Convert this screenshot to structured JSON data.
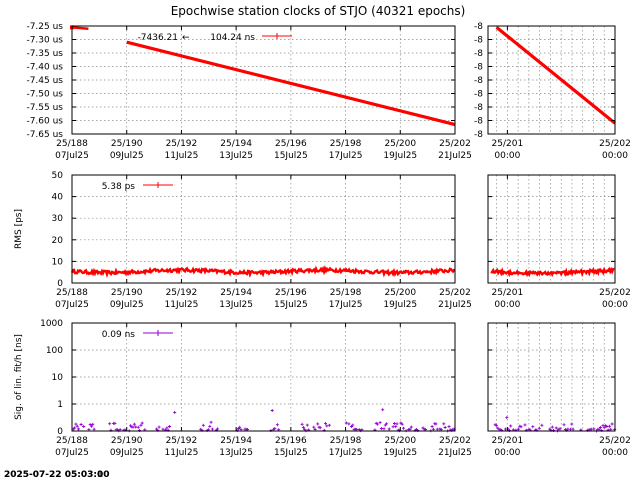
{
  "title": "Epochwise station clocks of STJO (40321 epochs)",
  "timestamp": "2025-07-22 05:03:00",
  "timestamp_overlay": "2025-07-22 05:03:10",
  "colors": {
    "clock": "#ff0000",
    "rms": "#ff0000",
    "sig": "#9400d3",
    "grid": "#888888"
  },
  "date_ticks_main": [
    {
      "top": "25/188",
      "bottom": "07Jul25"
    },
    {
      "top": "25/190",
      "bottom": "09Jul25"
    },
    {
      "top": "25/192",
      "bottom": "11Jul25"
    },
    {
      "top": "25/194",
      "bottom": "13Jul25"
    },
    {
      "top": "25/196",
      "bottom": "15Jul25"
    },
    {
      "top": "25/198",
      "bottom": "17Jul25"
    },
    {
      "top": "25/200",
      "bottom": "19Jul25"
    },
    {
      "top": "25/202",
      "bottom": "21Jul25"
    }
  ],
  "date_ticks_side": [
    {
      "top": "25/201",
      "bottom": "00:00"
    },
    {
      "top": "25/202",
      "bottom": "00:00"
    }
  ],
  "chart_data": [
    {
      "type": "line",
      "ylabel": "",
      "ylim": [
        -7.65,
        -7.25
      ],
      "y_ticks": [
        "-7.25 us",
        "-7.30 us",
        "-7.35 us",
        "-7.40 us",
        "-7.45 us",
        "-7.50 us",
        "-7.55 us",
        "-7.60 us",
        "-7.65 us"
      ],
      "grid": true,
      "legend": {
        "position": "top",
        "entries": [
          "-7436.21",
          "104.24 ns"
        ],
        "arrow": "←"
      },
      "series": [
        {
          "x": [
            188.0,
            190.0,
            202.0
          ],
          "y": [
            -7.255,
            -7.31,
            -7.615
          ]
        }
      ],
      "outlier_segment": {
        "x": [
          188.0,
          188.6
        ],
        "y": [
          -7.255,
          -7.26
        ]
      }
    },
    {
      "type": "line",
      "ylabel": "",
      "y_ticks": [
        "-8",
        "-8",
        "-8",
        "-8",
        "-8",
        "-8",
        "-8",
        "-8",
        "-8"
      ],
      "grid": true,
      "series": [
        {
          "x": [
            200.9,
            202.0
          ],
          "y": [
            -7.255,
            -7.61
          ]
        }
      ]
    },
    {
      "type": "line",
      "ylabel": "RMS [ps]",
      "ylim": [
        0,
        50
      ],
      "y_ticks": [
        "50",
        "40",
        "30",
        "20",
        "10",
        "0"
      ],
      "grid": true,
      "legend": {
        "position": "top-left",
        "entries": [
          "5.38 ps"
        ]
      },
      "series": [
        {
          "mean": 5.4,
          "range": [
            4.0,
            7.0
          ]
        }
      ]
    },
    {
      "type": "line",
      "ylabel": "",
      "ylim": [
        0,
        50
      ],
      "grid": true,
      "series": [
        {
          "mean": 5.0,
          "range": [
            4.0,
            6.5
          ]
        }
      ]
    },
    {
      "type": "scatter",
      "ylabel": "Sig. of lin. fit/h [ns]",
      "ylim": [
        0,
        1000
      ],
      "y_scale": "log",
      "y_ticks": [
        "1000",
        "100",
        "10",
        "1",
        "0"
      ],
      "grid": true,
      "legend": {
        "position": "top-left",
        "entries": [
          "0.09 ns"
        ]
      },
      "series": [
        {
          "typical": 0.09,
          "max": 0.3
        }
      ]
    },
    {
      "type": "scatter",
      "ylabel": "",
      "ylim": [
        0,
        1000
      ],
      "y_scale": "log",
      "grid": true,
      "series": [
        {
          "typical": 0.08,
          "max": 0.15
        }
      ]
    }
  ]
}
